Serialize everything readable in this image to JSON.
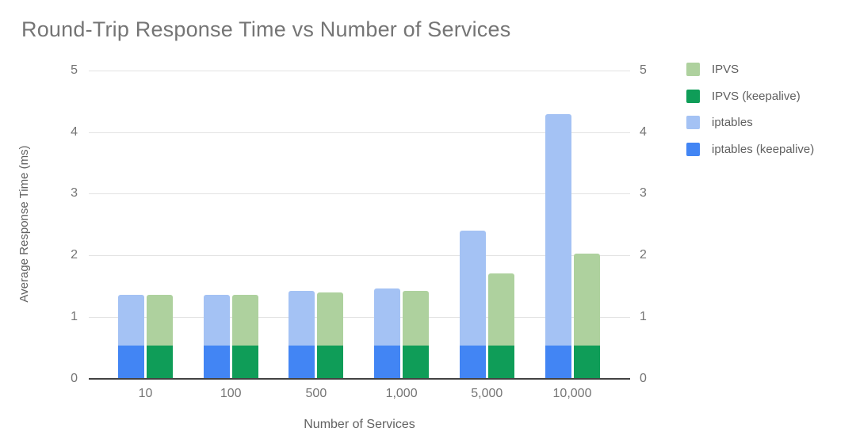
{
  "chart_data": {
    "type": "bar",
    "title": "Round-Trip Response Time vs Number of Services",
    "xlabel": "Number of Services",
    "ylabel": "Average Response Time (ms)",
    "ylim": [
      0,
      5
    ],
    "yticks": [
      0,
      1,
      2,
      3,
      4,
      5
    ],
    "grid": true,
    "dual_y_axis": true,
    "legend_position": "right",
    "categories": [
      "10",
      "100",
      "500",
      "1,000",
      "5,000",
      "10,000"
    ],
    "series": [
      {
        "name": "IPVS",
        "color": "#aed19e",
        "values": [
          1.36,
          1.36,
          1.39,
          1.42,
          1.7,
          2.03
        ]
      },
      {
        "name": "IPVS (keepalive)",
        "color": "#0f9d58",
        "values": [
          0.54,
          0.54,
          0.54,
          0.54,
          0.54,
          0.54
        ]
      },
      {
        "name": "iptables",
        "color": "#a4c2f4",
        "values": [
          1.36,
          1.36,
          1.42,
          1.46,
          2.4,
          4.29
        ]
      },
      {
        "name": "iptables (keepalive)",
        "color": "#4285f4",
        "values": [
          0.54,
          0.54,
          0.54,
          0.54,
          0.54,
          0.54
        ]
      }
    ],
    "note": "keepalive series are drawn overlaid at the base of the matching non-keepalive bar; blue pair = iptables (left bar), green pair = IPVS (right bar)"
  },
  "colors": {
    "title_text": "#757575",
    "tick_text": "#757575",
    "axis_title_text": "#616161",
    "gridline": "#e3e3e3",
    "baseline": "#424242",
    "background": "#ffffff"
  }
}
